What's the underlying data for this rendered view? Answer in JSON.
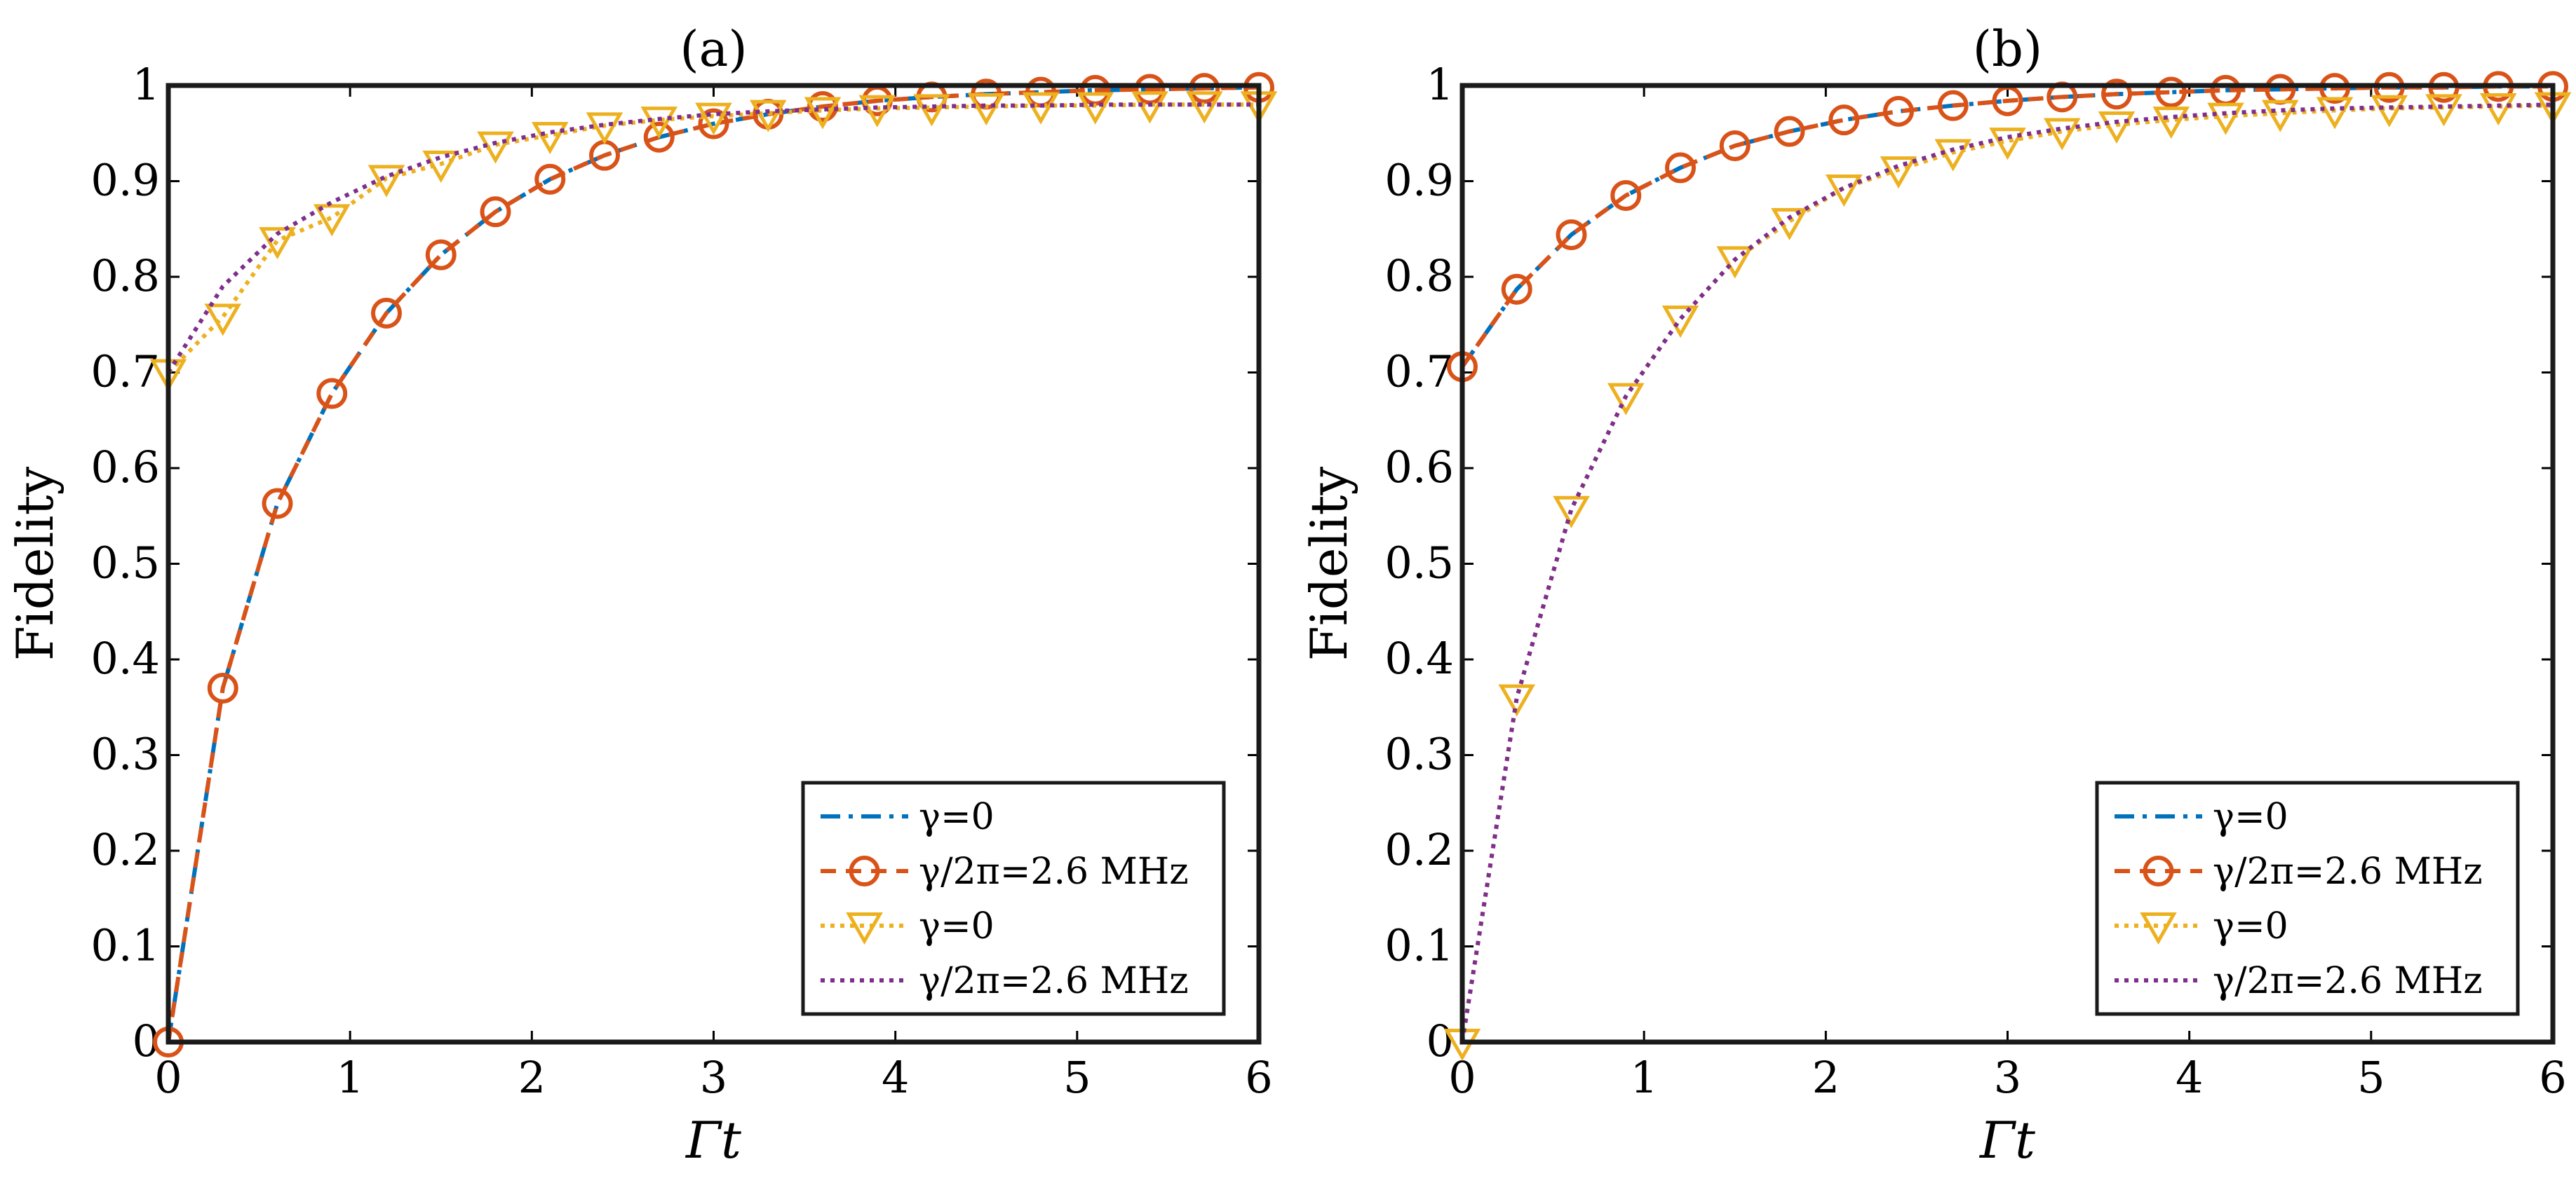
{
  "chart_data": [
    {
      "panel": "(a)",
      "type": "line",
      "title": "(a)",
      "xlabel": "Γt",
      "ylabel": "Fidelity",
      "xlim": [
        0,
        6
      ],
      "ylim": [
        0,
        1
      ],
      "xticks": [
        0,
        1,
        2,
        3,
        4,
        5,
        6
      ],
      "yticks": [
        0,
        0.1,
        0.2,
        0.3,
        0.4,
        0.5,
        0.6,
        0.7,
        0.8,
        0.9,
        1
      ],
      "ytick_labels": [
        "0",
        "0.1",
        "0.2",
        "0.3",
        "0.4",
        "0.5",
        "0.6",
        "0.7",
        "0.8",
        "0.9",
        "1"
      ],
      "legend_position": "bottom-right",
      "x": [
        0,
        0.3,
        0.6,
        0.9,
        1.2,
        1.5,
        1.8,
        2.1,
        2.4,
        2.7,
        3.0,
        3.3,
        3.6,
        3.9,
        4.2,
        4.5,
        4.8,
        5.1,
        5.4,
        5.7,
        6.0
      ],
      "series": [
        {
          "name": "γ=0",
          "style": "dashdot",
          "marker": "none",
          "color": "#0072BD",
          "values": [
            0.0,
            0.37,
            0.563,
            0.678,
            0.762,
            0.823,
            0.868,
            0.902,
            0.927,
            0.946,
            0.96,
            0.97,
            0.978,
            0.984,
            0.988,
            0.991,
            0.993,
            0.995,
            0.996,
            0.997,
            0.998
          ]
        },
        {
          "name": "γ/2π=2.6 MHz",
          "style": "dashed",
          "marker": "circle",
          "color": "#D95319",
          "values": [
            0.0,
            0.37,
            0.563,
            0.678,
            0.762,
            0.823,
            0.868,
            0.902,
            0.927,
            0.946,
            0.96,
            0.97,
            0.978,
            0.984,
            0.988,
            0.991,
            0.993,
            0.995,
            0.996,
            0.997,
            0.998
          ]
        },
        {
          "name": "γ=0",
          "style": "dotted",
          "marker": "triangle-down",
          "color": "#EDB120",
          "values": [
            0.7,
            0.758,
            0.838,
            0.862,
            0.903,
            0.918,
            0.938,
            0.948,
            0.958,
            0.964,
            0.968,
            0.971,
            0.974,
            0.976,
            0.977,
            0.978,
            0.979,
            0.979,
            0.98,
            0.98,
            0.98
          ]
        },
        {
          "name": "γ/2π=2.6 MHz",
          "style": "dotted",
          "marker": "none",
          "color": "#7E2F8E",
          "values": [
            0.7,
            0.79,
            0.845,
            0.878,
            0.905,
            0.925,
            0.94,
            0.951,
            0.959,
            0.965,
            0.97,
            0.973,
            0.975,
            0.977,
            0.978,
            0.979,
            0.979,
            0.98,
            0.98,
            0.98,
            0.98
          ]
        }
      ]
    },
    {
      "panel": "(b)",
      "type": "line",
      "title": "(b)",
      "xlabel": "Γt",
      "ylabel": "Fidelity",
      "xlim": [
        0,
        6
      ],
      "ylim": [
        0,
        1
      ],
      "xticks": [
        0,
        1,
        2,
        3,
        4,
        5,
        6
      ],
      "yticks": [
        0,
        0.1,
        0.2,
        0.3,
        0.4,
        0.5,
        0.6,
        0.7,
        0.8,
        0.9,
        1
      ],
      "ytick_labels": [
        "0",
        "0.1",
        "0.2",
        "0.3",
        "0.4",
        "0.5",
        "0.6",
        "0.7",
        "0.8",
        "0.9",
        "1"
      ],
      "legend_position": "bottom-right",
      "x": [
        0,
        0.3,
        0.6,
        0.9,
        1.2,
        1.5,
        1.8,
        2.1,
        2.4,
        2.7,
        3.0,
        3.3,
        3.6,
        3.9,
        4.2,
        4.5,
        4.8,
        5.1,
        5.4,
        5.7,
        6.0
      ],
      "series": [
        {
          "name": "γ=0",
          "style": "dashdot",
          "marker": "none",
          "color": "#0072BD",
          "values": [
            0.706,
            0.787,
            0.844,
            0.885,
            0.914,
            0.937,
            0.952,
            0.964,
            0.973,
            0.979,
            0.984,
            0.988,
            0.991,
            0.993,
            0.995,
            0.996,
            0.997,
            0.998,
            0.998,
            0.999,
            0.999
          ]
        },
        {
          "name": "γ/2π=2.6 MHz",
          "style": "dashed",
          "marker": "circle",
          "color": "#D95319",
          "values": [
            0.706,
            0.787,
            0.844,
            0.885,
            0.914,
            0.937,
            0.952,
            0.964,
            0.973,
            0.979,
            0.984,
            0.988,
            0.991,
            0.993,
            0.995,
            0.996,
            0.997,
            0.998,
            0.998,
            0.999,
            0.999
          ]
        },
        {
          "name": "γ=0",
          "style": "dotted",
          "marker": "triangle-down",
          "color": "#EDB120",
          "values": [
            0.0,
            0.36,
            0.557,
            0.675,
            0.756,
            0.818,
            0.858,
            0.893,
            0.912,
            0.93,
            0.942,
            0.952,
            0.959,
            0.964,
            0.968,
            0.971,
            0.974,
            0.976,
            0.977,
            0.978,
            0.979
          ]
        },
        {
          "name": "γ/2π=2.6 MHz",
          "style": "dotted",
          "marker": "none",
          "color": "#7E2F8E",
          "values": [
            0.0,
            0.36,
            0.557,
            0.675,
            0.756,
            0.818,
            0.862,
            0.893,
            0.916,
            0.933,
            0.946,
            0.955,
            0.962,
            0.967,
            0.971,
            0.974,
            0.976,
            0.977,
            0.978,
            0.979,
            0.98
          ]
        }
      ]
    }
  ]
}
